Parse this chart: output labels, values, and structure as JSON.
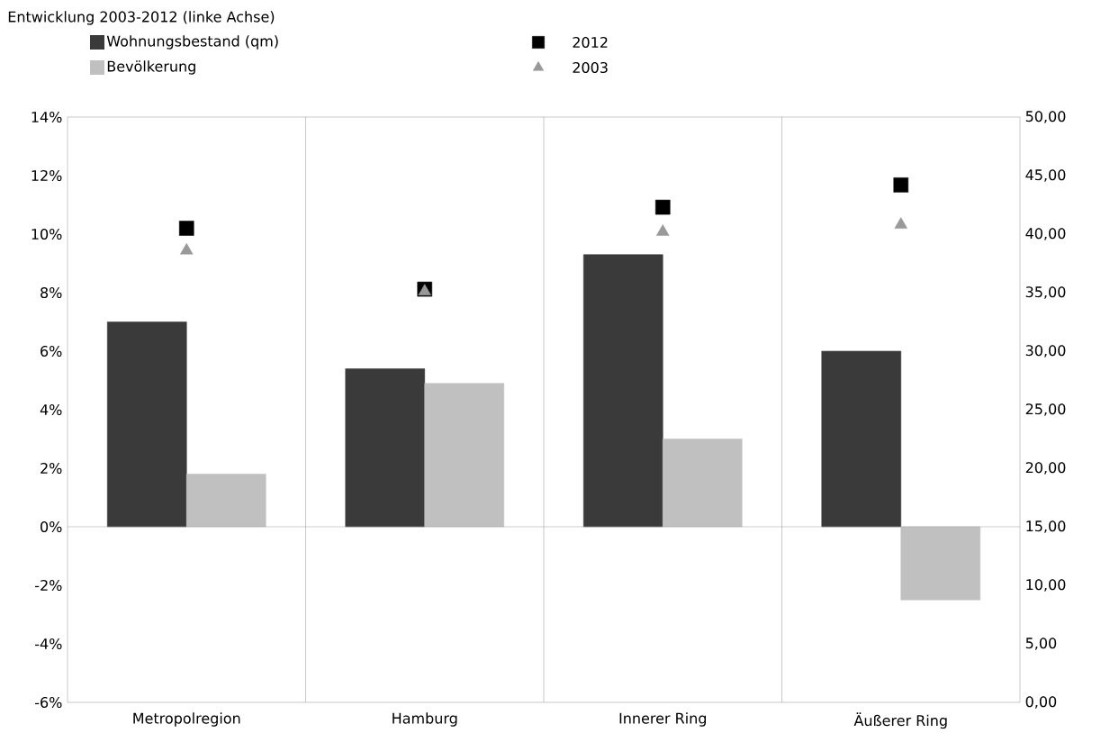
{
  "chart_data": {
    "type": "bar",
    "legend_title": "Entwicklung 2003-2012 (linke Achse)",
    "categories": [
      "Metropolregion",
      "Hamburg",
      "Innerer Ring",
      "Äußerer Ring"
    ],
    "series": [
      {
        "name": "Wohnungsbestand (qm)",
        "color": "#3a3a3a",
        "values": [
          7.0,
          5.4,
          9.3,
          6.0
        ]
      },
      {
        "name": "Bevölkerung",
        "color": "#c0c0c0",
        "values": [
          1.8,
          4.9,
          3.0,
          -2.5
        ]
      },
      {
        "name": "2012",
        "type": "scatter",
        "axis": "y2",
        "marker": "square",
        "color": "#000000",
        "values": [
          40.5,
          35.3,
          42.3,
          44.2
        ]
      },
      {
        "name": "2003",
        "type": "scatter",
        "axis": "y2",
        "marker": "triangle",
        "color": "#999999",
        "values": [
          38.6,
          35.1,
          40.2,
          40.8
        ]
      }
    ],
    "ylim": [
      -6,
      14
    ],
    "yticks": [
      {
        "value": -6,
        "label": "-6%"
      },
      {
        "value": -4,
        "label": "-4%"
      },
      {
        "value": -2,
        "label": "-2%"
      },
      {
        "value": 0,
        "label": "0%"
      },
      {
        "value": 2,
        "label": "2%"
      },
      {
        "value": 4,
        "label": "4%"
      },
      {
        "value": 6,
        "label": "6%"
      },
      {
        "value": 8,
        "label": "8%"
      },
      {
        "value": 10,
        "label": "10%"
      },
      {
        "value": 12,
        "label": "12%"
      },
      {
        "value": 14,
        "label": "14%"
      }
    ],
    "y2lim": [
      0,
      50
    ],
    "y2ticks": [
      {
        "value": 0,
        "label": "0,00"
      },
      {
        "value": 5,
        "label": "5,00"
      },
      {
        "value": 10,
        "label": "10,00"
      },
      {
        "value": 15,
        "label": "15,00"
      },
      {
        "value": 20,
        "label": "20,00"
      },
      {
        "value": 25,
        "label": "25,00"
      },
      {
        "value": 30,
        "label": "30,00"
      },
      {
        "value": 35,
        "label": "35,00"
      },
      {
        "value": 40,
        "label": "40,00"
      },
      {
        "value": 45,
        "label": "45,00"
      },
      {
        "value": 50,
        "label": "50,00"
      }
    ],
    "ref_lines": [
      {
        "axis": "y",
        "value": 0,
        "color": "#a0a0a0"
      }
    ],
    "grid": "x",
    "legend": "top left"
  }
}
